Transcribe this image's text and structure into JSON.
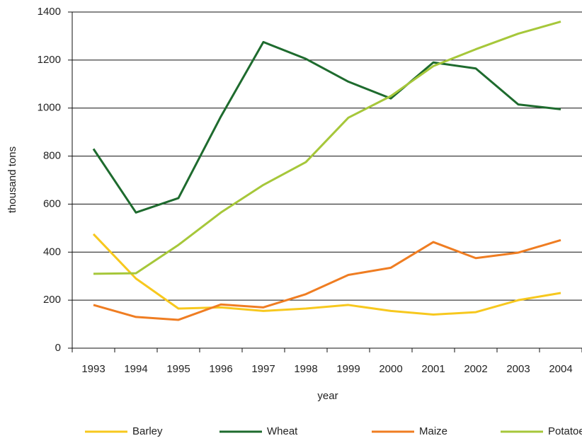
{
  "chart_data": {
    "type": "line",
    "x_label": "year",
    "y_label": "thousand tons",
    "categories": [
      "1993",
      "1994",
      "1995",
      "1996",
      "1997",
      "1998",
      "1999",
      "2000",
      "2001",
      "2002",
      "2003",
      "2004"
    ],
    "series": [
      {
        "name": "Barley",
        "color": "#f7c81e",
        "values": [
          475,
          290,
          165,
          170,
          155,
          165,
          180,
          155,
          140,
          150,
          200,
          230
        ]
      },
      {
        "name": "Wheat",
        "color": "#1e6b2e",
        "values": [
          830,
          565,
          625,
          965,
          1275,
          1205,
          1110,
          1040,
          1190,
          1165,
          1015,
          995
        ]
      },
      {
        "name": "Maize",
        "color": "#ef7d22",
        "values": [
          180,
          130,
          118,
          182,
          170,
          225,
          305,
          335,
          442,
          375,
          398,
          450
        ]
      },
      {
        "name": "Potatoes",
        "color": "#a6c73a",
        "values": [
          310,
          312,
          430,
          565,
          680,
          775,
          960,
          1050,
          1175,
          1245,
          1310,
          1360
        ]
      }
    ],
    "ylim": [
      0,
      1400
    ],
    "yticks": [
      0,
      200,
      400,
      600,
      800,
      1000,
      1200,
      1400
    ],
    "grid": true,
    "legend": "bottom"
  }
}
